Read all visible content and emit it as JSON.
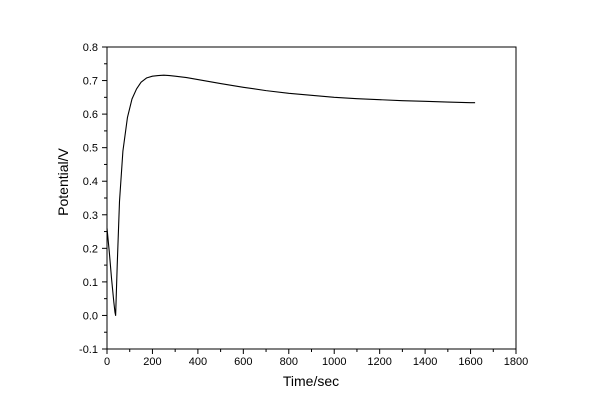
{
  "chart_data": {
    "type": "line",
    "title": "",
    "xlabel": "Time/sec",
    "ylabel": "Potential/V",
    "xlim": [
      0,
      1800
    ],
    "ylim": [
      -0.1,
      0.8
    ],
    "x_ticks": [
      0,
      200,
      400,
      600,
      800,
      1000,
      1200,
      1400,
      1600,
      1800
    ],
    "x_tick_labels": [
      "0",
      "200",
      "400",
      "600",
      "800",
      "1000",
      "1200",
      "1400",
      "1600",
      "1800"
    ],
    "y_ticks": [
      -0.1,
      0.0,
      0.1,
      0.2,
      0.3,
      0.4,
      0.5,
      0.6,
      0.7,
      0.8
    ],
    "y_tick_labels": [
      "-0.1",
      "0.0",
      "0.1",
      "0.2",
      "0.3",
      "0.4",
      "0.5",
      "0.6",
      "0.7",
      "0.8"
    ],
    "grid": false,
    "legend": "none",
    "series": [
      {
        "color": "#000000",
        "x": [
          0,
          10,
          20,
          30,
          35,
          38,
          45,
          55,
          70,
          90,
          110,
          130,
          150,
          175,
          200,
          225,
          250,
          275,
          300,
          350,
          400,
          450,
          500,
          600,
          700,
          800,
          900,
          1000,
          1100,
          1200,
          1300,
          1400,
          1500,
          1600,
          1620
        ],
        "y": [
          0.26,
          0.19,
          0.11,
          0.04,
          0.01,
          0.0,
          0.15,
          0.34,
          0.49,
          0.59,
          0.645,
          0.675,
          0.695,
          0.708,
          0.713,
          0.715,
          0.716,
          0.715,
          0.713,
          0.709,
          0.703,
          0.697,
          0.691,
          0.68,
          0.67,
          0.662,
          0.656,
          0.65,
          0.646,
          0.643,
          0.64,
          0.638,
          0.636,
          0.634,
          0.634
        ]
      }
    ]
  }
}
